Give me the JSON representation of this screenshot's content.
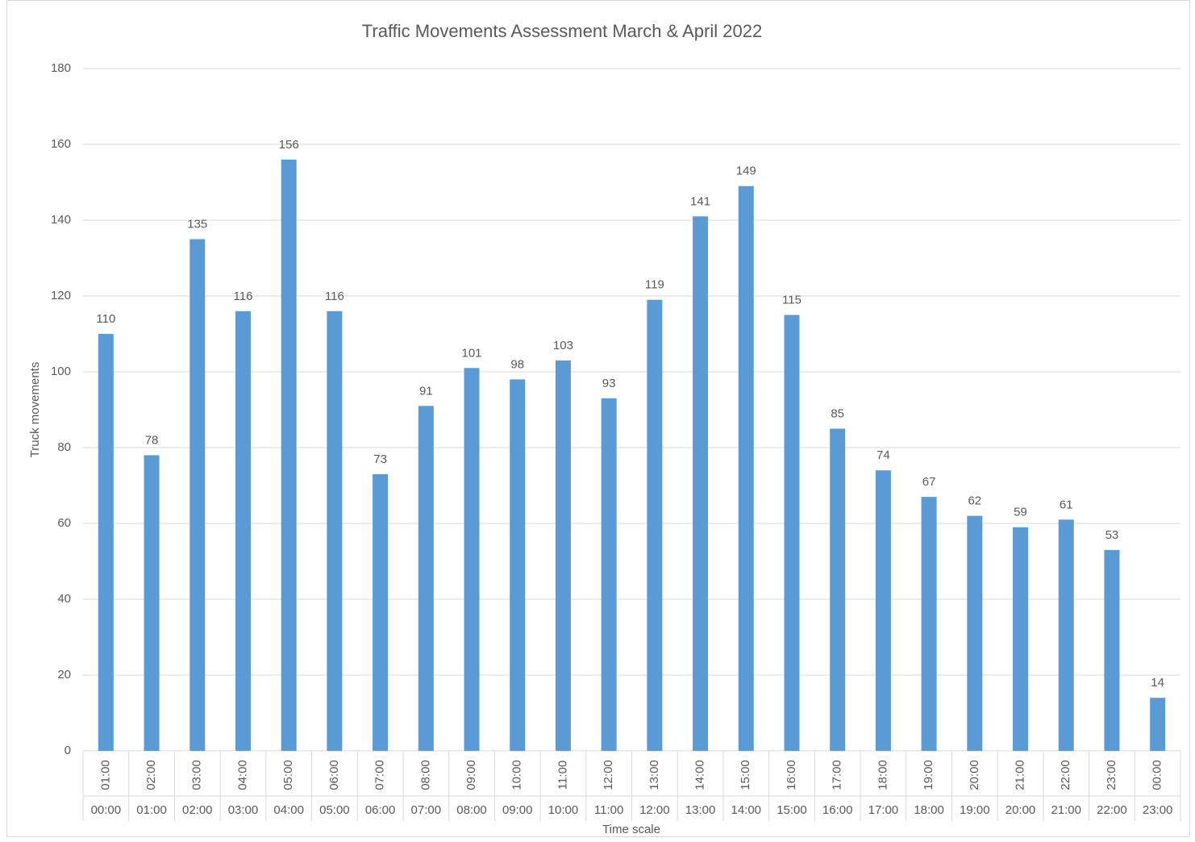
{
  "chart_data": {
    "type": "bar",
    "title": "Traffic Movements Assessment  March & April 2022",
    "x_label": "Time scale",
    "y_label": "Truck movements",
    "categories": [
      {
        "to": "01:00",
        "from": "00:00"
      },
      {
        "to": "02:00",
        "from": "01:00"
      },
      {
        "to": "03:00",
        "from": "02:00"
      },
      {
        "to": "04:00",
        "from": "03:00"
      },
      {
        "to": "05:00",
        "from": "04:00"
      },
      {
        "to": "06:00",
        "from": "05:00"
      },
      {
        "to": "07:00",
        "from": "06:00"
      },
      {
        "to": "08:00",
        "from": "07:00"
      },
      {
        "to": "09:00",
        "from": "08:00"
      },
      {
        "to": "10:00",
        "from": "09:00"
      },
      {
        "to": "11:00",
        "from": "10:00"
      },
      {
        "to": "12:00",
        "from": "11:00"
      },
      {
        "to": "13:00",
        "from": "12:00"
      },
      {
        "to": "14:00",
        "from": "13:00"
      },
      {
        "to": "15:00",
        "from": "14:00"
      },
      {
        "to": "16:00",
        "from": "15:00"
      },
      {
        "to": "17:00",
        "from": "16:00"
      },
      {
        "to": "18:00",
        "from": "17:00"
      },
      {
        "to": "19:00",
        "from": "18:00"
      },
      {
        "to": "20:00",
        "from": "19:00"
      },
      {
        "to": "21:00",
        "from": "20:00"
      },
      {
        "to": "22:00",
        "from": "21:00"
      },
      {
        "to": "23:00",
        "from": "22:00"
      },
      {
        "to": "00:00",
        "from": "23:00"
      }
    ],
    "values": [
      110,
      78,
      135,
      116,
      156,
      116,
      73,
      91,
      101,
      98,
      103,
      93,
      119,
      141,
      149,
      115,
      85,
      74,
      67,
      62,
      59,
      61,
      53,
      14
    ],
    "color": "#5b9bd5",
    "ylim": [
      0,
      180
    ],
    "yticks": [
      0,
      20,
      40,
      60,
      80,
      100,
      120,
      140,
      160,
      180
    ],
    "grid": true,
    "data_labels": true
  }
}
